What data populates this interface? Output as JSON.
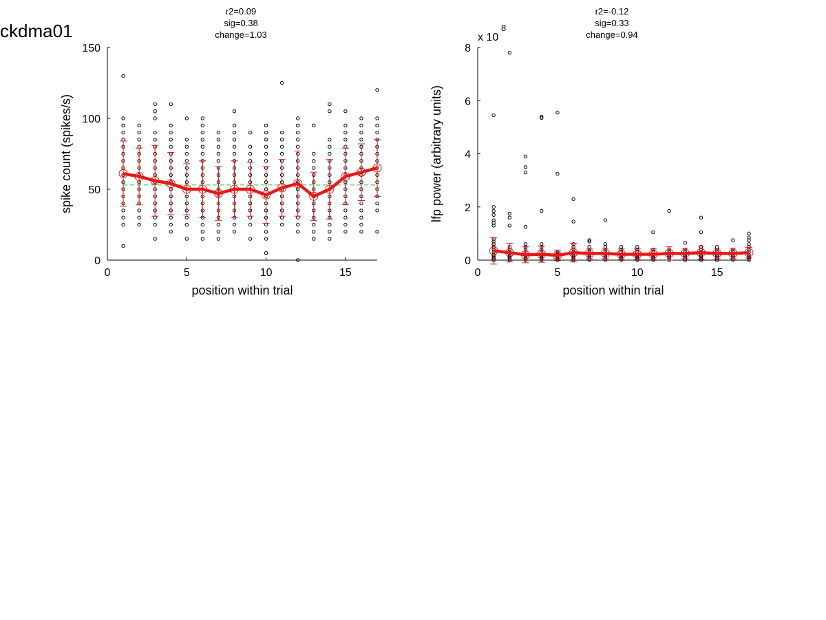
{
  "figure_label": "ckdma01",
  "chart_data": [
    {
      "type": "scatter",
      "subtype": "scatter-with-mean-line-and-errorbars",
      "stats": [
        "r2=0.09",
        "sig=0.38",
        "change=1.03"
      ],
      "xlabel": "position within trial",
      "ylabel": "spike count (spikes/s)",
      "xlim": [
        0,
        17
      ],
      "ylim": [
        0,
        150
      ],
      "xticks": [
        "0",
        "5",
        "10",
        "15"
      ],
      "yticks": [
        "0",
        "50",
        "100",
        "150"
      ],
      "multiplier": "",
      "grid": false,
      "mean_x": [
        1,
        2,
        3,
        4,
        5,
        6,
        7,
        8,
        9,
        10,
        11,
        12,
        13,
        14,
        15,
        16,
        17
      ],
      "mean_y": [
        61,
        59,
        56,
        54,
        50,
        50,
        47,
        50,
        50,
        46,
        51,
        54,
        45,
        50,
        59,
        62,
        65
      ],
      "sd": [
        23,
        20,
        25,
        22,
        18,
        20,
        19,
        20,
        19,
        20,
        20,
        23,
        17,
        21,
        20,
        20,
        20
      ],
      "reference_line": 53,
      "points": [
        {
          "x": 1,
          "y": [
            10,
            25,
            30,
            35,
            40,
            45,
            50,
            55,
            60,
            65,
            70,
            75,
            80,
            85,
            90,
            95,
            100,
            130
          ]
        },
        {
          "x": 2,
          "y": [
            25,
            30,
            35,
            40,
            45,
            50,
            55,
            60,
            65,
            70,
            75,
            80,
            85,
            90,
            95
          ]
        },
        {
          "x": 3,
          "y": [
            15,
            25,
            30,
            35,
            40,
            45,
            50,
            55,
            60,
            65,
            70,
            75,
            80,
            85,
            90,
            100,
            105,
            110
          ]
        },
        {
          "x": 4,
          "y": [
            20,
            25,
            30,
            35,
            40,
            45,
            50,
            55,
            60,
            65,
            70,
            75,
            80,
            85,
            90,
            95,
            110
          ]
        },
        {
          "x": 5,
          "y": [
            15,
            25,
            30,
            35,
            40,
            45,
            50,
            55,
            60,
            65,
            70,
            75,
            80,
            85,
            100
          ]
        },
        {
          "x": 6,
          "y": [
            15,
            20,
            25,
            30,
            35,
            40,
            45,
            50,
            55,
            60,
            65,
            70,
            75,
            80,
            85,
            90,
            95,
            100
          ]
        },
        {
          "x": 7,
          "y": [
            15,
            20,
            25,
            30,
            35,
            40,
            45,
            50,
            55,
            60,
            65,
            70,
            75,
            80,
            85,
            90
          ]
        },
        {
          "x": 8,
          "y": [
            20,
            25,
            30,
            35,
            40,
            45,
            50,
            55,
            60,
            65,
            70,
            75,
            80,
            85,
            90,
            95,
            105
          ]
        },
        {
          "x": 9,
          "y": [
            15,
            25,
            30,
            35,
            40,
            45,
            50,
            55,
            60,
            65,
            70,
            75,
            80,
            90
          ]
        },
        {
          "x": 10,
          "y": [
            5,
            15,
            20,
            25,
            30,
            35,
            40,
            45,
            50,
            55,
            60,
            65,
            70,
            75,
            80,
            85,
            90,
            95
          ]
        },
        {
          "x": 11,
          "y": [
            25,
            30,
            35,
            40,
            45,
            50,
            55,
            60,
            65,
            70,
            75,
            80,
            85,
            90,
            125
          ]
        },
        {
          "x": 12,
          "y": [
            0,
            20,
            25,
            30,
            35,
            40,
            45,
            50,
            55,
            60,
            65,
            70,
            75,
            80,
            85,
            90,
            95,
            100
          ]
        },
        {
          "x": 13,
          "y": [
            15,
            20,
            25,
            30,
            35,
            40,
            45,
            50,
            55,
            60,
            65,
            70,
            75,
            95
          ]
        },
        {
          "x": 14,
          "y": [
            15,
            20,
            25,
            30,
            35,
            40,
            45,
            50,
            55,
            60,
            65,
            70,
            75,
            80,
            85,
            105,
            110
          ]
        },
        {
          "x": 15,
          "y": [
            20,
            25,
            30,
            35,
            40,
            45,
            50,
            55,
            60,
            65,
            70,
            75,
            80,
            85,
            90,
            95,
            105
          ]
        },
        {
          "x": 16,
          "y": [
            20,
            25,
            30,
            35,
            40,
            45,
            50,
            55,
            60,
            65,
            70,
            75,
            80,
            85,
            90,
            95,
            100
          ]
        },
        {
          "x": 17,
          "y": [
            20,
            35,
            40,
            45,
            50,
            55,
            60,
            65,
            70,
            75,
            80,
            85,
            90,
            95,
            100,
            120
          ]
        }
      ],
      "colors": {
        "points": "#000000",
        "mean": "#e81818",
        "errorbar": "#d01818",
        "reference": "#33cc33"
      }
    },
    {
      "type": "scatter",
      "subtype": "scatter-with-mean-line-and-errorbars",
      "stats": [
        "r2=-0.12",
        "sig=0.33",
        "change=0.94"
      ],
      "xlabel": "position within trial",
      "ylabel": "lfp power (arbitrary units)",
      "xlim": [
        0,
        17
      ],
      "ylim": [
        0,
        8
      ],
      "xticks": [
        "0",
        "5",
        "10",
        "15"
      ],
      "yticks": [
        "0",
        "2",
        "4",
        "6",
        "8"
      ],
      "multiplier": "x 10",
      "multiplier_exp": "8",
      "grid": false,
      "mean_x": [
        1,
        2,
        3,
        4,
        5,
        6,
        7,
        8,
        9,
        10,
        11,
        12,
        13,
        14,
        15,
        16,
        17
      ],
      "mean_y": [
        0.35,
        0.28,
        0.2,
        0.22,
        0.18,
        0.28,
        0.25,
        0.25,
        0.22,
        0.22,
        0.22,
        0.25,
        0.25,
        0.28,
        0.25,
        0.25,
        0.28
      ],
      "sd": [
        0.5,
        0.35,
        0.3,
        0.3,
        0.2,
        0.35,
        0.2,
        0.2,
        0.2,
        0.2,
        0.2,
        0.25,
        0.2,
        0.25,
        0.2,
        0.2,
        0.2
      ],
      "reference_line": null,
      "points": [
        {
          "x": 1,
          "y": [
            0,
            0.05,
            0.1,
            0.15,
            0.2,
            0.3,
            0.4,
            0.5,
            0.6,
            0.7,
            0.8,
            1.3,
            1.4,
            1.5,
            1.7,
            1.85,
            2.0,
            5.45
          ]
        },
        {
          "x": 2,
          "y": [
            0,
            0.05,
            0.1,
            0.15,
            0.2,
            0.3,
            0.4,
            0.5,
            1.3,
            1.6,
            1.75,
            7.8
          ]
        },
        {
          "x": 3,
          "y": [
            0,
            0.05,
            0.1,
            0.15,
            0.2,
            0.3,
            0.4,
            0.5,
            0.6,
            1.25,
            3.3,
            3.5,
            3.9
          ]
        },
        {
          "x": 4,
          "y": [
            0,
            0.05,
            0.1,
            0.15,
            0.2,
            0.3,
            0.4,
            0.5,
            0.6,
            1.85,
            5.35,
            5.4
          ]
        },
        {
          "x": 5,
          "y": [
            0,
            0.05,
            0.1,
            0.15,
            0.2,
            0.25,
            0.3,
            3.25,
            5.55
          ]
        },
        {
          "x": 6,
          "y": [
            0,
            0.05,
            0.1,
            0.15,
            0.2,
            0.3,
            0.4,
            0.5,
            0.6,
            1.45,
            2.3
          ]
        },
        {
          "x": 7,
          "y": [
            0,
            0.05,
            0.1,
            0.15,
            0.2,
            0.3,
            0.4,
            0.5,
            0.7,
            0.75
          ]
        },
        {
          "x": 8,
          "y": [
            0,
            0.05,
            0.1,
            0.15,
            0.2,
            0.3,
            0.4,
            0.5,
            0.6,
            1.5
          ]
        },
        {
          "x": 9,
          "y": [
            0,
            0.05,
            0.1,
            0.15,
            0.2,
            0.3,
            0.4,
            0.5
          ]
        },
        {
          "x": 10,
          "y": [
            0,
            0.05,
            0.1,
            0.15,
            0.2,
            0.3,
            0.4,
            0.5
          ]
        },
        {
          "x": 11,
          "y": [
            0,
            0.05,
            0.1,
            0.15,
            0.2,
            0.3,
            0.4,
            1.05
          ]
        },
        {
          "x": 12,
          "y": [
            0,
            0.05,
            0.1,
            0.15,
            0.2,
            0.3,
            0.4,
            1.85
          ]
        },
        {
          "x": 13,
          "y": [
            0,
            0.05,
            0.1,
            0.15,
            0.2,
            0.3,
            0.4,
            0.65
          ]
        },
        {
          "x": 14,
          "y": [
            0,
            0.05,
            0.1,
            0.15,
            0.2,
            0.3,
            0.4,
            0.5,
            1.05,
            1.6
          ]
        },
        {
          "x": 15,
          "y": [
            0,
            0.05,
            0.1,
            0.15,
            0.2,
            0.3,
            0.4,
            0.5
          ]
        },
        {
          "x": 16,
          "y": [
            0,
            0.05,
            0.1,
            0.15,
            0.2,
            0.3,
            0.4,
            0.75
          ]
        },
        {
          "x": 17,
          "y": [
            0,
            0.05,
            0.1,
            0.15,
            0.2,
            0.3,
            0.4,
            0.5,
            0.6,
            0.75,
            0.85,
            1.0
          ]
        }
      ],
      "colors": {
        "points": "#000000",
        "mean": "#e81818",
        "errorbar": "#d01818",
        "reference": "#33cc33"
      }
    }
  ]
}
